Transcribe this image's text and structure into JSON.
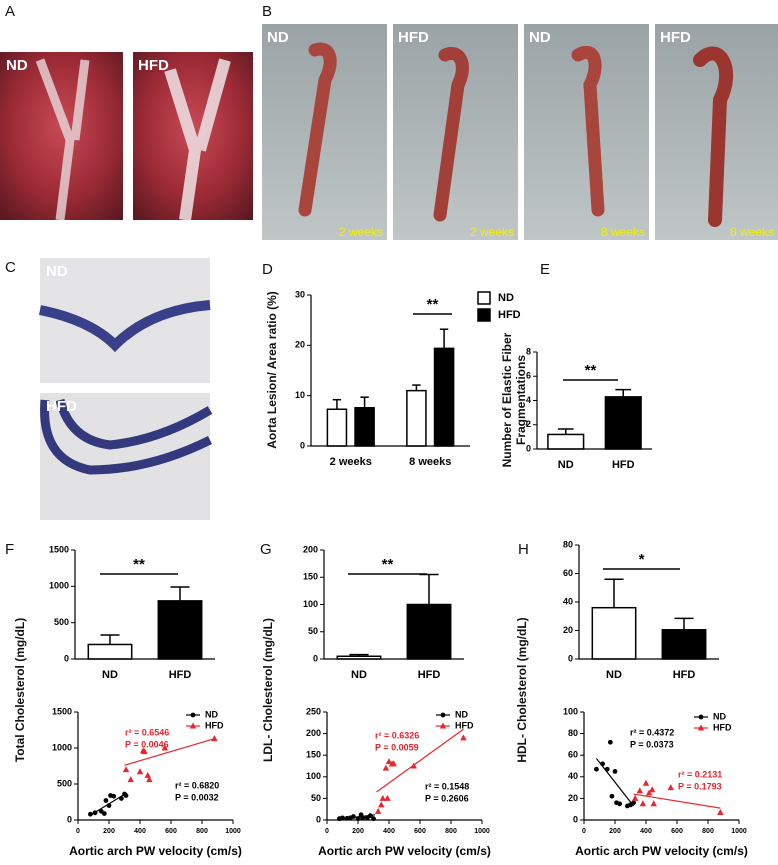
{
  "panels": [
    {
      "label": "A",
      "images": [
        {
          "label": "ND"
        },
        {
          "label": "HFD"
        }
      ]
    },
    {
      "label": "B",
      "images": [
        {
          "label": "ND",
          "caption": "2 weeks"
        },
        {
          "label": "HFD",
          "caption": "2 weeks"
        },
        {
          "label": "ND",
          "caption": "8 weeks"
        },
        {
          "label": "HFD",
          "caption": "8 weeks"
        }
      ]
    },
    {
      "label": "C",
      "images": [
        {
          "label": "ND"
        },
        {
          "label": "HFD"
        }
      ]
    }
  ],
  "chart_data": [
    {
      "type": "bar",
      "panel": "D",
      "y_label": "Aorta Lesion/ Area ratio (%)",
      "categories": [
        "2 weeks",
        "8 weeks"
      ],
      "series": [
        {
          "name": "ND",
          "color": "#ffffff",
          "values": [
            7.3,
            11
          ],
          "errors": [
            1.9,
            1.1
          ]
        },
        {
          "name": "HFD",
          "color": "#000000",
          "values": [
            7.6,
            19.4
          ],
          "errors": [
            2.1,
            3.8
          ]
        }
      ],
      "ylim": [
        0,
        30
      ],
      "yticks": [
        0,
        10,
        20,
        30
      ],
      "significance": "**",
      "legend": "upper right"
    },
    {
      "type": "bar",
      "panel": "E",
      "y_label": "Number of Elastic Fiber Fragmentations",
      "categories": [
        "ND",
        "HFD"
      ],
      "values": [
        1.2,
        4.3
      ],
      "errors": [
        0.45,
        0.6
      ],
      "colors": [
        "#ffffff",
        "#000000"
      ],
      "ylim": [
        0,
        8
      ],
      "yticks": [
        0,
        2,
        4,
        6,
        8
      ],
      "significance": "**"
    },
    {
      "type": "bar",
      "panel": "F",
      "y_label": "Total Cholesterol (mg/dL)",
      "categories": [
        "ND",
        "HFD"
      ],
      "values": [
        200,
        800
      ],
      "errors": [
        130,
        190
      ],
      "colors": [
        "#ffffff",
        "#000000"
      ],
      "ylim": [
        0,
        1500
      ],
      "yticks": [
        0,
        500,
        1000,
        1500
      ],
      "significance": "**"
    },
    {
      "type": "scatter",
      "x_label": "Aortic arch PW velocity (cm/s)",
      "xlim": [
        0,
        1000
      ],
      "xticks": [
        0,
        200,
        400,
        600,
        800,
        1000
      ],
      "ylim": [
        0,
        1500
      ],
      "yticks": [
        0,
        500,
        1000,
        1500
      ],
      "series": [
        {
          "name": "ND",
          "color": "#000000",
          "marker": "circle",
          "x": [
            80,
            110,
            150,
            170,
            180,
            200,
            210,
            230,
            280,
            300,
            310
          ],
          "values": [
            80,
            100,
            120,
            90,
            270,
            200,
            340,
            330,
            300,
            360,
            340
          ],
          "fit_x": [
            90,
            310
          ],
          "fit_y": [
            80,
            370
          ]
        },
        {
          "name": "HFD",
          "color": "#e8262b",
          "marker": "triangle",
          "x": [
            310,
            340,
            400,
            420,
            430,
            450,
            460,
            560,
            880
          ],
          "values": [
            700,
            560,
            670,
            960,
            950,
            620,
            560,
            1000,
            1130
          ],
          "fit_x": [
            300,
            880
          ],
          "fit_y": [
            760,
            1130
          ]
        }
      ],
      "annotations": [
        {
          "text": "r² = 0.6546",
          "color": "#e8262b"
        },
        {
          "text": "P = 0.0046",
          "color": "#e8262b"
        },
        {
          "text": "r² = 0.6820",
          "color": "#000000"
        },
        {
          "text": "P = 0.0032",
          "color": "#000000"
        }
      ]
    },
    {
      "type": "bar",
      "panel": "G",
      "y_label": "LDL- Cholesterol (mg/dL)",
      "categories": [
        "ND",
        "HFD"
      ],
      "values": [
        5,
        100
      ],
      "errors": [
        3,
        55
      ],
      "colors": [
        "#ffffff",
        "#000000"
      ],
      "ylim": [
        0,
        200
      ],
      "yticks": [
        0,
        50,
        100,
        150,
        200
      ],
      "significance": "**"
    },
    {
      "type": "scatter",
      "x_label": "Aortic arch PW velocity (cm/s)",
      "xlim": [
        0,
        1000
      ],
      "xticks": [
        0,
        200,
        400,
        600,
        800,
        1000
      ],
      "ylim": [
        0,
        250
      ],
      "yticks": [
        0,
        50,
        100,
        150,
        200,
        250
      ],
      "series": [
        {
          "name": "ND",
          "color": "#000000",
          "marker": "circle",
          "x": [
            80,
            100,
            130,
            150,
            170,
            200,
            220,
            230,
            260,
            280,
            300
          ],
          "values": [
            3,
            5,
            4,
            5,
            8,
            3,
            12,
            5,
            5,
            10,
            3
          ],
          "fit_x": [
            80,
            310
          ],
          "fit_y": [
            2,
            12
          ]
        },
        {
          "name": "HFD",
          "color": "#e8262b",
          "marker": "triangle",
          "x": [
            330,
            350,
            360,
            380,
            390,
            400,
            420,
            430,
            560,
            880
          ],
          "values": [
            20,
            35,
            50,
            120,
            50,
            135,
            130,
            130,
            125,
            190
          ],
          "fit_x": [
            320,
            880
          ],
          "fit_y": [
            65,
            210
          ]
        }
      ],
      "annotations": [
        {
          "text": "r² = 0.6326",
          "color": "#e8262b"
        },
        {
          "text": "P = 0.0059",
          "color": "#e8262b"
        },
        {
          "text": "r² = 0.1548",
          "color": "#000000"
        },
        {
          "text": "P = 0.2606",
          "color": "#000000"
        }
      ]
    },
    {
      "type": "bar",
      "panel": "H",
      "y_label": "HDL- Cholesterol (mg/dL)",
      "categories": [
        "ND",
        "HFD"
      ],
      "values": [
        36,
        20.5
      ],
      "errors": [
        20,
        8
      ],
      "colors": [
        "#ffffff",
        "#000000"
      ],
      "ylim": [
        0,
        80
      ],
      "yticks": [
        0,
        20,
        40,
        60,
        80
      ],
      "significance": "*"
    },
    {
      "type": "scatter",
      "x_label": "Aortic arch PW velocity (cm/s)",
      "xlim": [
        0,
        1000
      ],
      "xticks": [
        0,
        200,
        400,
        600,
        800,
        1000
      ],
      "ylim": [
        0,
        100
      ],
      "yticks": [
        0,
        20,
        40,
        60,
        80,
        100
      ],
      "series": [
        {
          "name": "ND",
          "color": "#000000",
          "marker": "circle",
          "x": [
            80,
            120,
            150,
            170,
            180,
            200,
            210,
            230,
            280,
            300,
            320
          ],
          "values": [
            47,
            52,
            47,
            72,
            22,
            45,
            16,
            15,
            13,
            14,
            16
          ],
          "fit_x": [
            80,
            320
          ],
          "fit_y": [
            57,
            13
          ]
        },
        {
          "name": "HFD",
          "color": "#e8262b",
          "marker": "triangle",
          "x": [
            330,
            360,
            380,
            400,
            420,
            440,
            450,
            560,
            880
          ],
          "values": [
            20,
            27,
            15,
            34,
            25,
            28,
            15,
            30,
            7
          ],
          "fit_x": [
            320,
            880
          ],
          "fit_y": [
            24,
            11
          ]
        }
      ],
      "annotations": [
        {
          "text": "r² = 0.4372",
          "color": "#000000"
        },
        {
          "text": "P = 0.0373",
          "color": "#000000"
        },
        {
          "text": "r² = 0.2131",
          "color": "#e8262b"
        },
        {
          "text": "P = 0.1793",
          "color": "#e8262b"
        }
      ]
    }
  ]
}
